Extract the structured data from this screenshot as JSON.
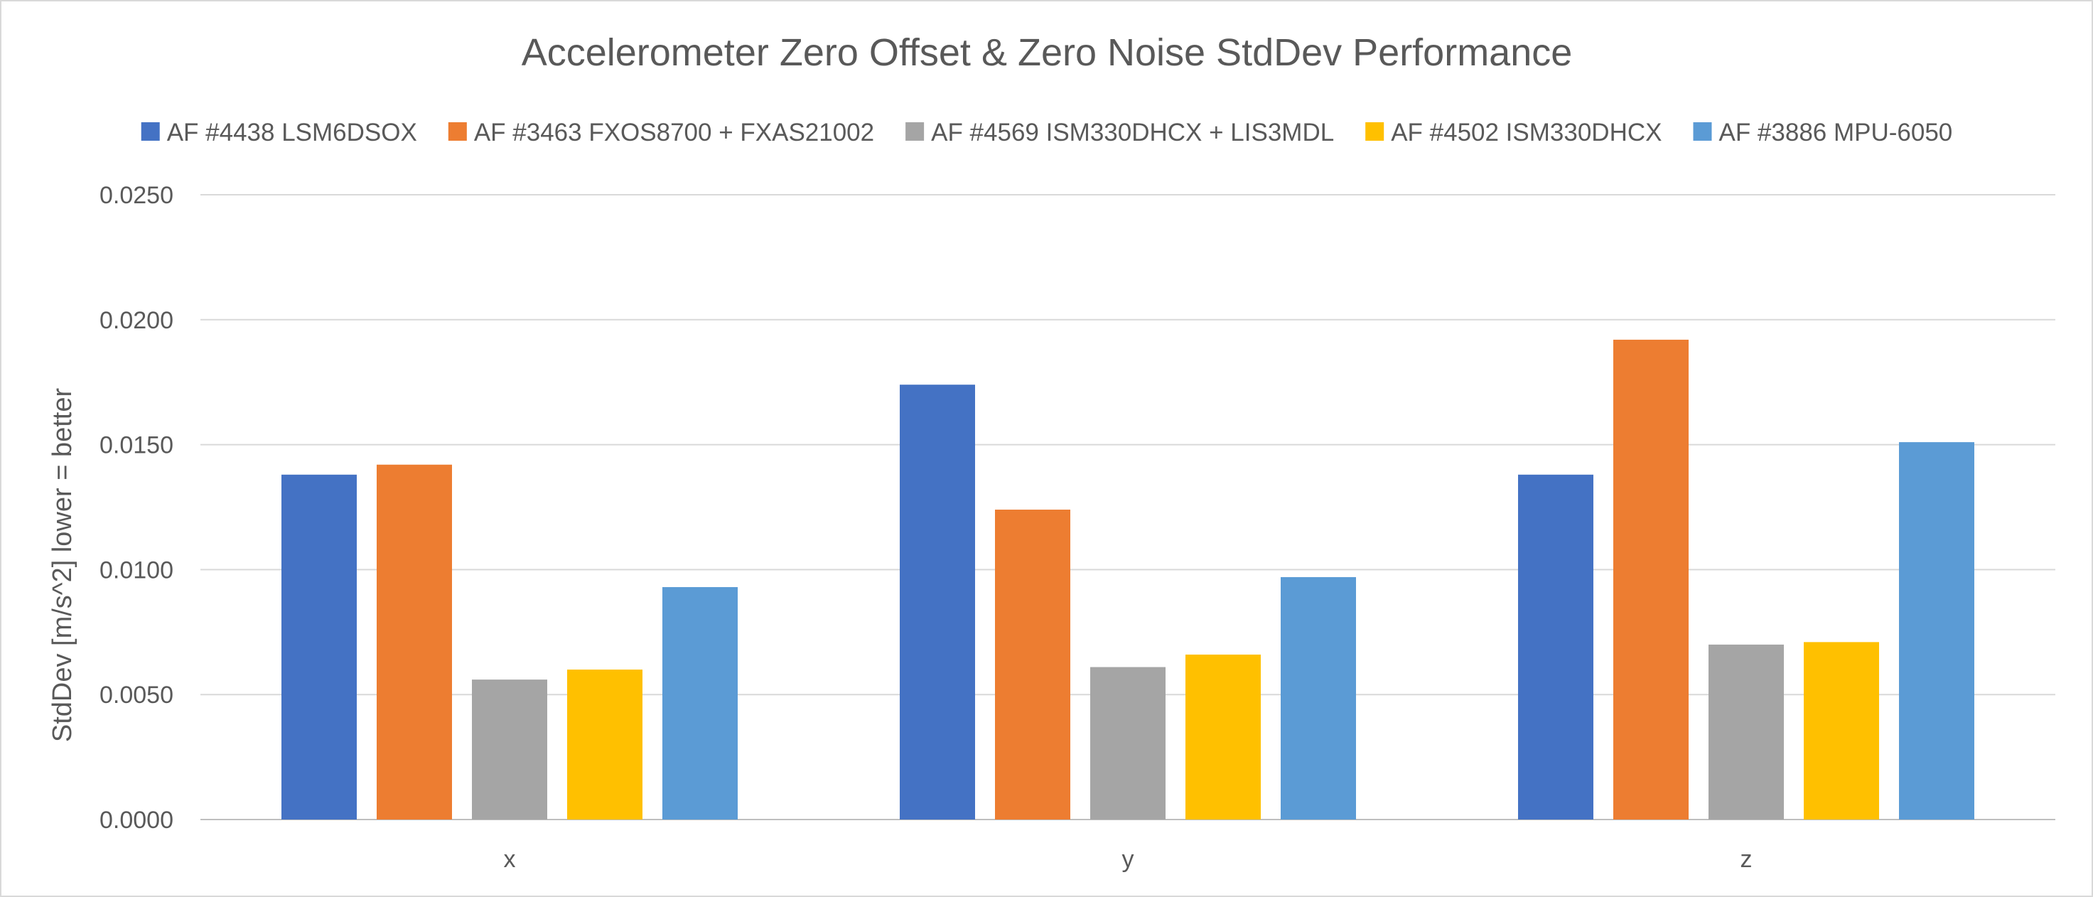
{
  "chart_data": {
    "type": "bar",
    "title": "Accelerometer Zero Offset & Zero Noise StdDev Performance",
    "xlabel": "",
    "ylabel": "StdDev [m/s^2]  lower = better",
    "categories": [
      "x",
      "y",
      "z"
    ],
    "ylim": [
      0,
      0.025
    ],
    "yticks": [
      "0.0000",
      "0.0050",
      "0.0100",
      "0.0150",
      "0.0200",
      "0.0250"
    ],
    "grid": true,
    "legend_position": "top",
    "series": [
      {
        "name": "AF #4438 LSM6DSOX",
        "color": "#4472C4",
        "values": [
          0.0138,
          0.0174,
          0.0138
        ]
      },
      {
        "name": "AF #3463 FXOS8700 + FXAS21002",
        "color": "#ED7D31",
        "values": [
          0.0142,
          0.0124,
          0.0192
        ]
      },
      {
        "name": "AF #4569 ISM330DHCX + LIS3MDL",
        "color": "#A5A5A5",
        "values": [
          0.0056,
          0.0061,
          0.007
        ]
      },
      {
        "name": "AF #4502 ISM330DHCX",
        "color": "#FFC000",
        "values": [
          0.006,
          0.0066,
          0.0071
        ]
      },
      {
        "name": "AF #3886 MPU-6050",
        "color": "#5B9BD5",
        "values": [
          0.0093,
          0.0097,
          0.0151
        ]
      }
    ]
  }
}
